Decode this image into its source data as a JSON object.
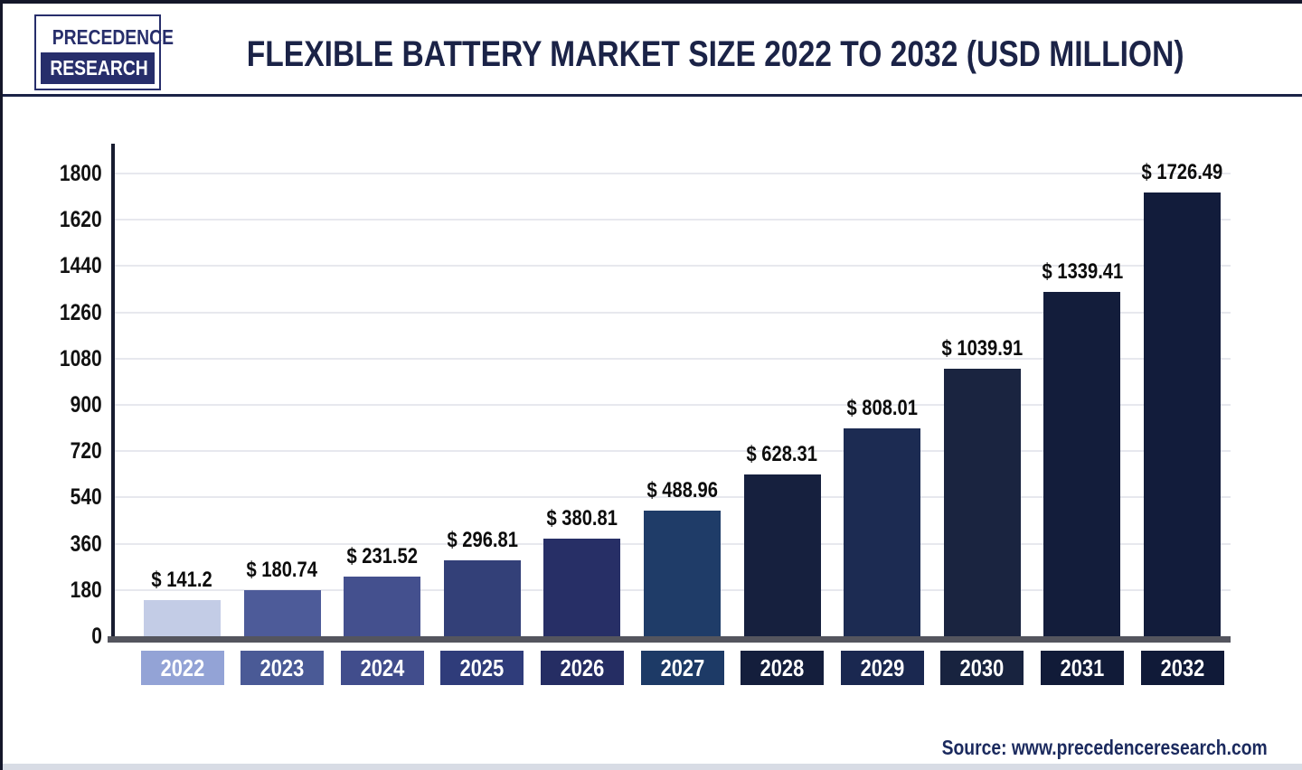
{
  "header": {
    "logo_line1": "PRECEDENCE",
    "logo_line2": "RESEARCH",
    "title": "FLEXIBLE BATTERY MARKET SIZE 2022 TO 2032 (USD MILLION)"
  },
  "footer": {
    "source": "Source: www.precedenceresearch.com"
  },
  "colors": {
    "title_navy": "#1b2347",
    "logo_navy": "#272e6b",
    "axis": "#181c30",
    "baseline_gray": "#54555e",
    "gridline_gray": "#e7e8ee",
    "source_navy": "#1b2a5e"
  },
  "chart_data": {
    "type": "bar",
    "title": "Flexible Battery Market Size 2022 to 2032 (USD Million)",
    "xlabel": "",
    "ylabel": "",
    "ylim": [
      0,
      1800
    ],
    "yticks": [
      0,
      180,
      360,
      540,
      720,
      900,
      1080,
      1260,
      1440,
      1620,
      1800
    ],
    "grid": true,
    "legend": false,
    "categories": [
      "2022",
      "2023",
      "2024",
      "2025",
      "2026",
      "2027",
      "2028",
      "2029",
      "2030",
      "2031",
      "2032"
    ],
    "values": [
      141.2,
      180.74,
      231.52,
      296.81,
      380.81,
      488.96,
      628.31,
      808.01,
      1039.91,
      1339.41,
      1726.49
    ],
    "value_labels": [
      "$ 141.2",
      "$ 180.74",
      "$ 231.52",
      "$ 296.81",
      "$ 380.81",
      "$ 488.96",
      "$ 628.31",
      "$ 808.01",
      "$ 1039.91",
      "$ 1339.41",
      "$ 1726.49"
    ],
    "bar_colors": [
      "#c3cce6",
      "#4d5b99",
      "#44508e",
      "#334078",
      "#272f66",
      "#1f3c68",
      "#16203e",
      "#1c2b52",
      "#1a2440",
      "#131d3b",
      "#121c3b"
    ],
    "label_box_colors": [
      "#93a3d6",
      "#4a5a96",
      "#414d8c",
      "#2f3c7a",
      "#252d63",
      "#1d3a66",
      "#141e3c",
      "#1a2850",
      "#18233f",
      "#111b38",
      "#101a38"
    ]
  }
}
